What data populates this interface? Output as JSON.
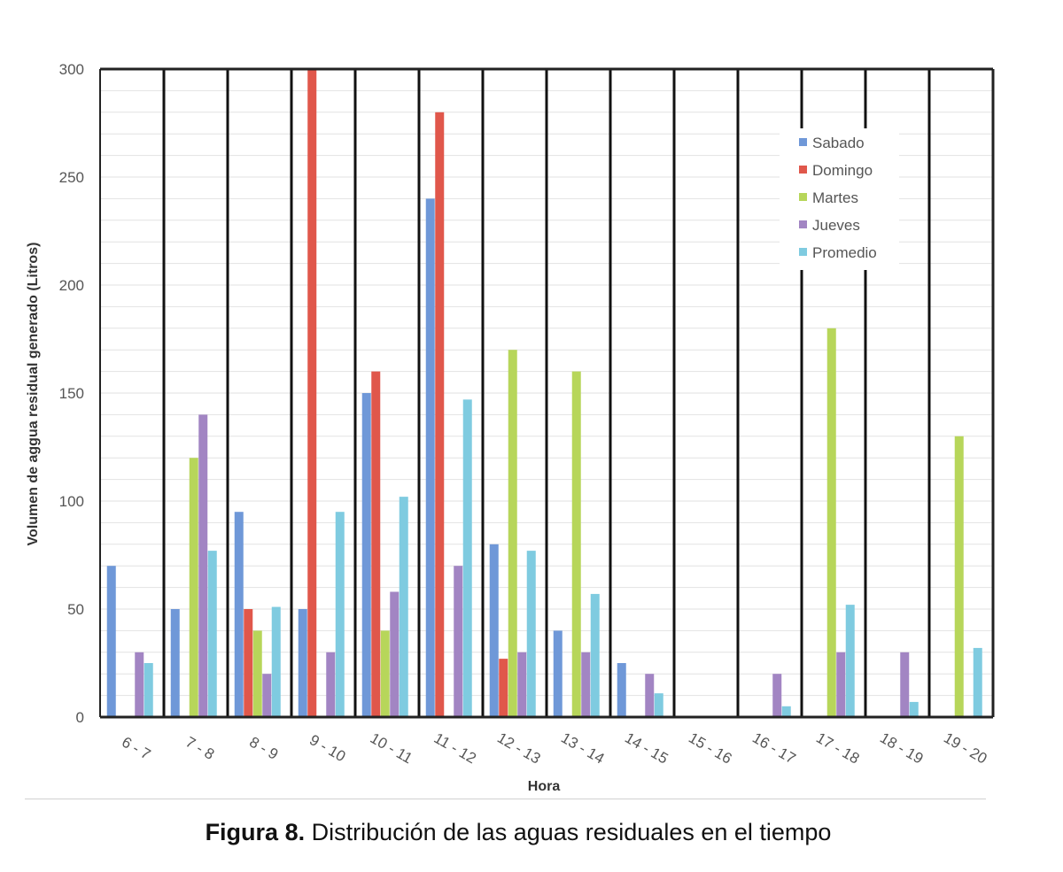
{
  "chart_data": {
    "type": "bar",
    "xlabel": "Hora",
    "ylabel": "Volumen de aggua residual generado (Litros)",
    "ylim": [
      0,
      300
    ],
    "yticks": [
      0,
      50,
      100,
      150,
      200,
      250,
      300
    ],
    "grid": "horizontal minor gridlines, black vertical separators between categories",
    "legend_position": "top-right",
    "categories": [
      "6 - 7",
      "7 - 8",
      "8 - 9",
      "9 - 10",
      "10 - 11",
      "11 - 12",
      "12 - 13",
      "13 - 14",
      "14 - 15",
      "15 - 16",
      "16 - 17",
      "17 - 18",
      "18 - 19",
      "19 - 20"
    ],
    "series": [
      {
        "name": "Sabado",
        "color": "#6f98d8",
        "values": [
          70,
          50,
          95,
          50,
          150,
          240,
          80,
          40,
          25,
          0,
          0,
          0,
          0,
          0
        ]
      },
      {
        "name": "Domingo",
        "color": "#e0574b",
        "values": [
          0,
          0,
          50,
          300,
          160,
          280,
          27,
          0,
          0,
          0,
          0,
          0,
          0,
          0
        ]
      },
      {
        "name": "Martes",
        "color": "#b7d65a",
        "values": [
          0,
          120,
          40,
          0,
          40,
          0,
          170,
          160,
          0,
          0,
          0,
          180,
          0,
          130
        ]
      },
      {
        "name": "Jueves",
        "color": "#a285c3",
        "values": [
          30,
          140,
          20,
          30,
          58,
          70,
          30,
          30,
          20,
          0,
          20,
          30,
          30,
          0
        ]
      },
      {
        "name": "Promedio",
        "color": "#7fcbe0",
        "values": [
          25,
          77,
          51,
          95,
          102,
          147,
          77,
          57,
          11,
          0,
          5,
          52,
          7,
          32
        ]
      }
    ]
  },
  "caption": {
    "label": "Figura 8.",
    "text": " Distribución de las aguas residuales en el tiempo"
  }
}
